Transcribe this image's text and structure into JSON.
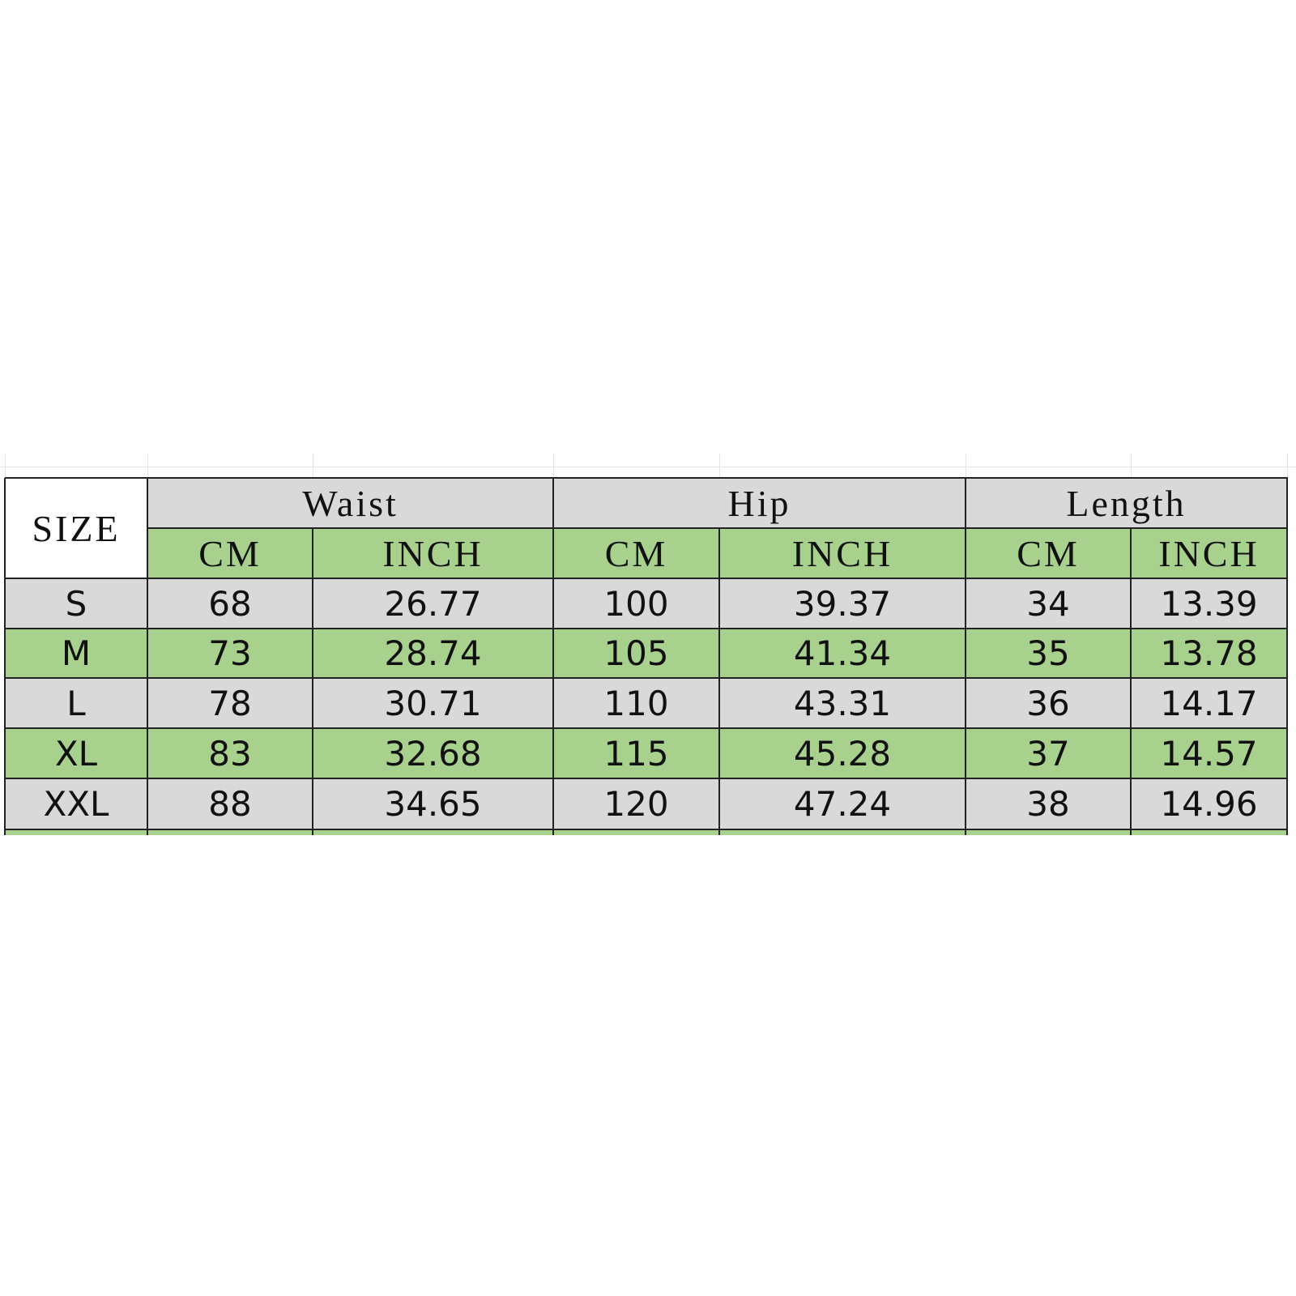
{
  "table": {
    "corner": "SIZE",
    "groups": [
      "Waist",
      "Hip",
      "Length"
    ],
    "units": [
      "CM",
      "INCH",
      "CM",
      "INCH",
      "CM",
      "INCH"
    ],
    "rows": [
      [
        "S",
        "68",
        "26.77",
        "100",
        "39.37",
        "34",
        "13.39"
      ],
      [
        "M",
        "73",
        "28.74",
        "105",
        "41.34",
        "35",
        "13.78"
      ],
      [
        "L",
        "78",
        "30.71",
        "110",
        "43.31",
        "36",
        "14.17"
      ],
      [
        "XL",
        "83",
        "32.68",
        "115",
        "45.28",
        "37",
        "14.57"
      ],
      [
        "XXL",
        "88",
        "34.65",
        "120",
        "47.24",
        "38",
        "14.96"
      ]
    ]
  }
}
